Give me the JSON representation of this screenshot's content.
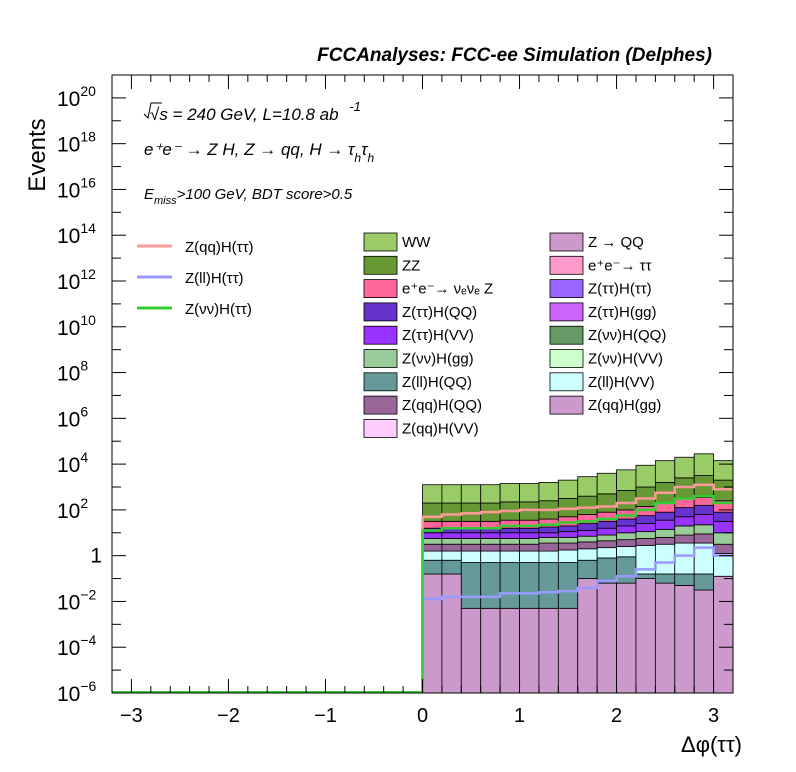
{
  "header": {
    "title": "FCCAnalyses: FCC-ee Simulation (Delphes)"
  },
  "annotations": {
    "energy": "√s = 240 GeV, L=10.8 ab",
    "lumi_exp": "-1",
    "process": "e⁺e⁻ → Z H, Z → qq, H → τ",
    "tau_sub": "h",
    "cuts_E": "E",
    "cuts_sub": "miss",
    "cuts_rest": ">100 GeV, BDT score>0.5"
  },
  "chart_data": {
    "type": "bar",
    "title": "",
    "xlabel": "Δφ(ττ)",
    "ylabel": "Events",
    "xlim": [
      -3.2,
      3.2
    ],
    "ylim_exp": [
      -6,
      21
    ],
    "log_y": true,
    "grid": false,
    "x_ticks": [
      -3,
      -2,
      -1,
      0,
      1,
      2,
      3
    ],
    "x_tick_labels": [
      "−3",
      "−2",
      "−1",
      "0",
      "1",
      "2",
      "3"
    ],
    "y_tick_labels": [
      {
        "exp": 20,
        "base": "10",
        "sup": "20"
      },
      {
        "exp": 18,
        "base": "10",
        "sup": "18"
      },
      {
        "exp": 16,
        "base": "10",
        "sup": "16"
      },
      {
        "exp": 14,
        "base": "10",
        "sup": "14"
      },
      {
        "exp": 12,
        "base": "10",
        "sup": "12"
      },
      {
        "exp": 10,
        "base": "10",
        "sup": "10"
      },
      {
        "exp": 8,
        "base": "10",
        "sup": "8"
      },
      {
        "exp": 6,
        "base": "10",
        "sup": "6"
      },
      {
        "exp": 4,
        "base": "10",
        "sup": "4"
      },
      {
        "exp": 2,
        "base": "10",
        "sup": "2"
      },
      {
        "exp": 0,
        "base": "1",
        "sup": ""
      },
      {
        "exp": -2,
        "base": "10",
        "sup": "−2"
      },
      {
        "exp": -4,
        "base": "10",
        "sup": "−4"
      },
      {
        "exp": -6,
        "base": "10",
        "sup": "−6"
      }
    ],
    "bin_edges": [
      0,
      0.2,
      0.4,
      0.6,
      0.8,
      1.0,
      1.2,
      1.4,
      1.6,
      1.8,
      2.0,
      2.2,
      2.4,
      2.6,
      2.8,
      3.0,
      3.2
    ],
    "stack_bounds_log10": [
      [
        -6,
        -0.8,
        -0.2,
        0.2,
        0.5,
        0.75,
        1.0,
        1.2,
        1.5,
        2.3,
        3.1
      ],
      [
        -6,
        -0.8,
        -0.2,
        0.2,
        0.5,
        0.75,
        1.0,
        1.2,
        1.5,
        2.3,
        3.1
      ],
      [
        -6,
        -2.3,
        -0.3,
        0.2,
        0.5,
        0.75,
        1.0,
        1.2,
        1.5,
        2.3,
        3.1
      ],
      [
        -6,
        -2.3,
        -0.3,
        0.2,
        0.5,
        0.75,
        1.0,
        1.2,
        1.5,
        2.3,
        3.1
      ],
      [
        -6,
        -2.3,
        -0.3,
        0.2,
        0.5,
        0.75,
        1.0,
        1.2,
        1.55,
        2.35,
        3.15
      ],
      [
        -6,
        -2.3,
        -0.3,
        0.2,
        0.5,
        0.75,
        1.0,
        1.2,
        1.55,
        2.35,
        3.15
      ],
      [
        -6,
        -2.3,
        -0.3,
        0.2,
        0.55,
        0.8,
        1.0,
        1.25,
        1.6,
        2.4,
        3.2
      ],
      [
        -6,
        -2.3,
        -0.3,
        0.25,
        0.55,
        0.8,
        1.05,
        1.3,
        1.7,
        2.5,
        3.3
      ],
      [
        -6,
        -1.0,
        -0.2,
        0.3,
        0.6,
        0.85,
        1.1,
        1.4,
        1.8,
        2.6,
        3.45
      ],
      [
        -6,
        -1.2,
        -0.1,
        0.35,
        0.65,
        0.9,
        1.2,
        1.5,
        1.9,
        2.7,
        3.6
      ],
      [
        -6,
        -1.2,
        -0.05,
        0.4,
        0.7,
        1.0,
        1.3,
        1.6,
        2.0,
        2.85,
        3.75
      ],
      [
        -6,
        -1.0,
        -0.8,
        0.45,
        0.75,
        1.05,
        1.4,
        1.75,
        2.15,
        3.0,
        3.95
      ],
      [
        -6,
        -1.2,
        -0.8,
        0.5,
        0.8,
        1.15,
        1.55,
        1.9,
        2.3,
        3.2,
        4.15
      ],
      [
        -6,
        -1.3,
        -0.8,
        0.55,
        0.9,
        1.3,
        1.7,
        2.1,
        2.5,
        3.4,
        4.3
      ],
      [
        -6,
        -1.5,
        -0.8,
        0.55,
        0.95,
        1.35,
        1.8,
        2.2,
        2.55,
        3.5,
        4.45
      ],
      [
        -6,
        -0.9,
        -0.9,
        0.1,
        0.5,
        1.0,
        1.5,
        1.9,
        2.4,
        3.3,
        4.15
      ]
    ],
    "stack_colors": [
      "#cc99cc",
      "#669999",
      "#ccffff",
      "#996699",
      "#99cc99",
      "#9933ff",
      "#6633cc",
      "#ff6699",
      "#669933",
      "#99cc66"
    ],
    "stack_names": [
      "Z(qq)H(gg)",
      "Z(ll)H(QQ)",
      "Z(ll)H(VV)",
      "Z(qq)H(QQ)",
      "Z(νν)H(gg)",
      "Z(ττ)H(VV)",
      "Z(ττ)H(QQ)",
      "e⁺e⁻→ νₑνₑ Z",
      "ZZ",
      "WW"
    ],
    "series": [
      {
        "name": "Z(qq)H(ττ)",
        "color": "#ff9999",
        "values_log10": [
          1.7,
          1.8,
          1.85,
          1.9,
          1.95,
          2.0,
          2.0,
          2.05,
          2.1,
          2.15,
          2.3,
          2.5,
          2.75,
          3.0,
          3.1,
          2.9
        ]
      },
      {
        "name": "Z(ll)H(ττ)",
        "color": "#9999ff",
        "values_log10": [
          -1.9,
          -1.8,
          -1.8,
          -1.8,
          -1.65,
          -1.65,
          -1.6,
          -1.55,
          -1.4,
          -1.1,
          -0.9,
          -0.6,
          -0.3,
          0.0,
          0.35,
          0.0
        ]
      },
      {
        "name": "Z(νν)H(ττ)",
        "color": "#33cc33",
        "values_log10": [
          1.1,
          1.2,
          1.2,
          1.2,
          1.3,
          1.3,
          1.35,
          1.45,
          1.5,
          1.6,
          1.75,
          2.0,
          2.3,
          2.5,
          2.6,
          2.3
        ]
      }
    ],
    "legend_lines": [
      "Z(qq)H(ττ)",
      "Z(ll)H(ττ)",
      "Z(νν)H(ττ)"
    ],
    "legend_stack": [
      {
        "label": "WW",
        "color": "#99cc66"
      },
      {
        "label": "Z → QQ",
        "color": "#cc99cc"
      },
      {
        "label": "ZZ",
        "color": "#669933"
      },
      {
        "label": "e⁺e⁻→ ττ",
        "color": "#ff99cc"
      },
      {
        "label": "e⁺e⁻→ νₑνₑ Z",
        "color": "#ff6699"
      },
      {
        "label": "Z(ττ)H(ττ)",
        "color": "#9966ff"
      },
      {
        "label": "Z(ττ)H(QQ)",
        "color": "#6633cc"
      },
      {
        "label": "Z(ττ)H(gg)",
        "color": "#cc66ff"
      },
      {
        "label": "Z(ττ)H(VV)",
        "color": "#9933ff"
      },
      {
        "label": "Z(νν)H(QQ)",
        "color": "#669966"
      },
      {
        "label": "Z(νν)H(gg)",
        "color": "#99cc99"
      },
      {
        "label": "Z(νν)H(VV)",
        "color": "#ccffcc"
      },
      {
        "label": "Z(ll)H(QQ)",
        "color": "#669999"
      },
      {
        "label": "Z(ll)H(VV)",
        "color": "#ccffff"
      },
      {
        "label": "Z(qq)H(QQ)",
        "color": "#996699"
      },
      {
        "label": "Z(qq)H(gg)",
        "color": "#cc99cc"
      },
      {
        "label": "Z(qq)H(VV)",
        "color": "#ffccff"
      }
    ]
  }
}
